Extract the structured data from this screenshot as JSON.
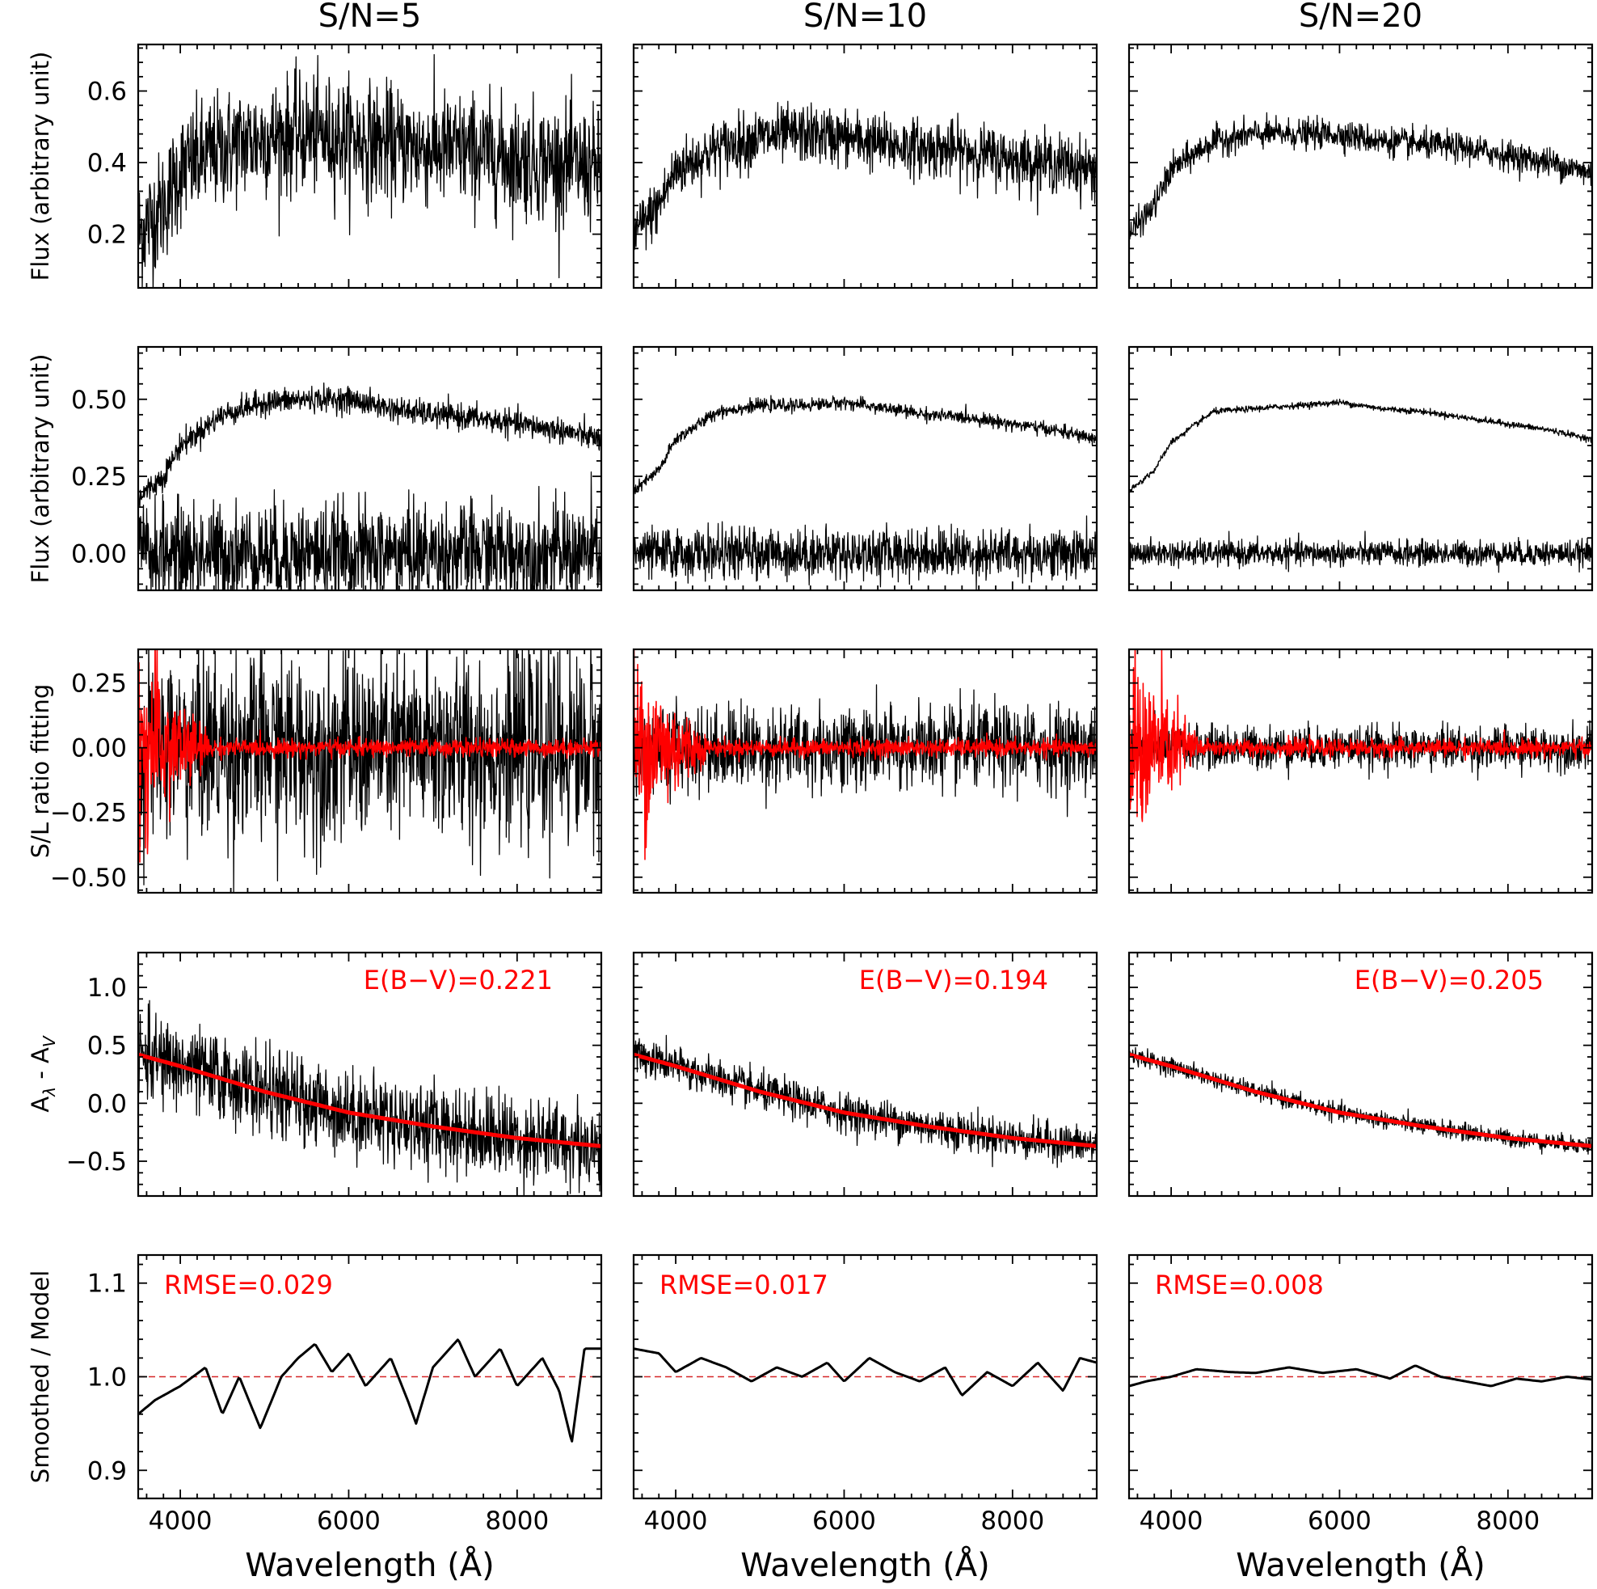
{
  "colors": {
    "data": "#000000",
    "model": "#ff0000",
    "reference": "#d62728"
  },
  "chart_data": {
    "type": "line",
    "layout": "5 rows x 3 columns grid of panels",
    "column_titles": [
      "S/N=5",
      "S/N=10",
      "S/N=20"
    ],
    "xlabel": "Wavelength (Å)",
    "xlim": [
      3500,
      9000
    ],
    "xticks": [
      4000,
      6000,
      8000
    ],
    "rows": [
      {
        "ylabel": "Flux (arbitrary unit)",
        "ylim": [
          0.05,
          0.73
        ],
        "yticks": [
          0.2,
          0.4,
          0.6
        ],
        "ytick_labels": [
          "0.2",
          "0.4",
          "0.6"
        ],
        "panels": [
          {
            "series": [
              {
                "x": [
                  3500,
                  3800,
                  4000,
                  4500,
                  5000,
                  5500,
                  6000,
                  6500,
                  7000,
                  7500,
                  8000,
                  8500,
                  9000
                ],
                "y": [
                  0.2,
                  0.28,
                  0.38,
                  0.44,
                  0.47,
                  0.48,
                  0.47,
                  0.45,
                  0.44,
                  0.43,
                  0.41,
                  0.4,
                  0.38
                ],
                "noise": 0.2
              }
            ]
          },
          {
            "series": [
              {
                "x": [
                  3500,
                  3800,
                  4000,
                  4500,
                  5000,
                  5500,
                  6000,
                  6500,
                  7000,
                  7500,
                  8000,
                  8500,
                  9000
                ],
                "y": [
                  0.2,
                  0.28,
                  0.38,
                  0.44,
                  0.47,
                  0.48,
                  0.47,
                  0.45,
                  0.44,
                  0.43,
                  0.41,
                  0.4,
                  0.38
                ],
                "noise": 0.1
              }
            ]
          },
          {
            "series": [
              {
                "x": [
                  3500,
                  3800,
                  4000,
                  4500,
                  5000,
                  5500,
                  6000,
                  6500,
                  7000,
                  7500,
                  8000,
                  8500,
                  9000
                ],
                "y": [
                  0.2,
                  0.28,
                  0.38,
                  0.46,
                  0.48,
                  0.48,
                  0.48,
                  0.46,
                  0.45,
                  0.44,
                  0.42,
                  0.4,
                  0.37
                ],
                "noise": 0.05
              }
            ]
          }
        ]
      },
      {
        "ylabel": "Flux (arbitrary unit)",
        "ylim": [
          -0.12,
          0.67
        ],
        "yticks": [
          0.0,
          0.25,
          0.5
        ],
        "ytick_labels": [
          "0.00",
          "0.25",
          "0.50"
        ],
        "panels": [
          {
            "series": [
              {
                "x": [
                  3500,
                  3800,
                  4000,
                  4500,
                  5000,
                  5500,
                  6000,
                  6500,
                  7000,
                  7500,
                  8000,
                  8500,
                  9000
                ],
                "y": [
                  0.18,
                  0.25,
                  0.35,
                  0.45,
                  0.49,
                  0.5,
                  0.5,
                  0.47,
                  0.45,
                  0.44,
                  0.42,
                  0.4,
                  0.37
                ],
                "noise": 0.05
              },
              {
                "x": [
                  3500,
                  9000
                ],
                "y": [
                  0.0,
                  0.0
                ],
                "noise": 0.2
              }
            ]
          },
          {
            "series": [
              {
                "x": [
                  3500,
                  3800,
                  4000,
                  4500,
                  5000,
                  5500,
                  6000,
                  6500,
                  7000,
                  7500,
                  8000,
                  8500,
                  9000
                ],
                "y": [
                  0.2,
                  0.27,
                  0.37,
                  0.46,
                  0.48,
                  0.48,
                  0.49,
                  0.47,
                  0.45,
                  0.44,
                  0.42,
                  0.4,
                  0.37
                ],
                "noise": 0.025
              },
              {
                "x": [
                  3500,
                  9000
                ],
                "y": [
                  0.0,
                  0.0
                ],
                "noise": 0.1
              }
            ]
          },
          {
            "series": [
              {
                "x": [
                  3500,
                  3800,
                  4000,
                  4500,
                  5000,
                  5500,
                  6000,
                  6500,
                  7000,
                  7500,
                  8000,
                  8500,
                  9000
                ],
                "y": [
                  0.2,
                  0.27,
                  0.36,
                  0.46,
                  0.47,
                  0.48,
                  0.49,
                  0.47,
                  0.46,
                  0.44,
                  0.42,
                  0.4,
                  0.37
                ],
                "noise": 0.012
              },
              {
                "x": [
                  3500,
                  9000
                ],
                "y": [
                  0.0,
                  0.0
                ],
                "noise": 0.05
              }
            ]
          }
        ]
      },
      {
        "ylabel": "S/L ratio fitting",
        "ylim": [
          -0.56,
          0.38
        ],
        "yticks": [
          -0.5,
          -0.25,
          0.0,
          0.25
        ],
        "ytick_labels": [
          "−0.50",
          "−0.25",
          "0.00",
          "0.25"
        ],
        "panels": [
          {
            "series": [
              {
                "x": [
                  3500,
                  9000
                ],
                "y": [
                  0.0,
                  0.0
                ],
                "noise": 0.45
              },
              {
                "x": [
                  3500,
                  9000
                ],
                "y": [
                  0.0,
                  0.0
                ],
                "noise": 0.04,
                "blue_scatter": 0.5,
                "color": "#ff0000"
              }
            ]
          },
          {
            "series": [
              {
                "x": [
                  3500,
                  9000
                ],
                "y": [
                  0.0,
                  0.0
                ],
                "noise": 0.2
              },
              {
                "x": [
                  3500,
                  9000
                ],
                "y": [
                  0.0,
                  0.0
                ],
                "noise": 0.04,
                "blue_scatter": 0.5,
                "color": "#ff0000"
              }
            ]
          },
          {
            "series": [
              {
                "x": [
                  3500,
                  9000
                ],
                "y": [
                  0.0,
                  0.0
                ],
                "noise": 0.1
              },
              {
                "x": [
                  3500,
                  9000
                ],
                "y": [
                  0.0,
                  0.0
                ],
                "noise": 0.04,
                "blue_scatter": 0.5,
                "color": "#ff0000"
              }
            ]
          }
        ]
      },
      {
        "ylabel": "Aλ - AV",
        "ylim": [
          -0.8,
          1.3
        ],
        "yticks": [
          -0.5,
          0.0,
          0.5,
          1.0
        ],
        "ytick_labels": [
          "−0.5",
          "0.0",
          "0.5",
          "1.0"
        ],
        "panels": [
          {
            "annotation": "E(B−V)=0.221",
            "series": [
              {
                "x": [
                  3500,
                  4000,
                  5000,
                  6000,
                  7000,
                  8000,
                  9000
                ],
                "y": [
                  0.42,
                  0.32,
                  0.1,
                  -0.08,
                  -0.2,
                  -0.3,
                  -0.37
                ],
                "noise": 0.45
              },
              {
                "x": [
                  3500,
                  4000,
                  5000,
                  6000,
                  7000,
                  8000,
                  9000
                ],
                "y": [
                  0.42,
                  0.32,
                  0.1,
                  -0.08,
                  -0.2,
                  -0.3,
                  -0.37
                ],
                "noise": 0,
                "color": "#ff0000",
                "width": 5
              }
            ]
          },
          {
            "annotation": "E(B−V)=0.194",
            "series": [
              {
                "x": [
                  3500,
                  4000,
                  5000,
                  6000,
                  7000,
                  8000,
                  9000
                ],
                "y": [
                  0.42,
                  0.32,
                  0.1,
                  -0.08,
                  -0.2,
                  -0.3,
                  -0.37
                ],
                "noise": 0.2
              },
              {
                "x": [
                  3500,
                  4000,
                  5000,
                  6000,
                  7000,
                  8000,
                  9000
                ],
                "y": [
                  0.42,
                  0.32,
                  0.1,
                  -0.08,
                  -0.2,
                  -0.3,
                  -0.37
                ],
                "noise": 0,
                "color": "#ff0000",
                "width": 5
              }
            ]
          },
          {
            "annotation": "E(B−V)=0.205",
            "series": [
              {
                "x": [
                  3500,
                  4000,
                  5000,
                  6000,
                  7000,
                  8000,
                  9000
                ],
                "y": [
                  0.42,
                  0.32,
                  0.1,
                  -0.08,
                  -0.2,
                  -0.3,
                  -0.37
                ],
                "noise": 0.09
              },
              {
                "x": [
                  3500,
                  4000,
                  5000,
                  6000,
                  7000,
                  8000,
                  9000
                ],
                "y": [
                  0.42,
                  0.32,
                  0.1,
                  -0.08,
                  -0.2,
                  -0.3,
                  -0.37
                ],
                "noise": 0,
                "color": "#ff0000",
                "width": 5
              }
            ]
          }
        ]
      },
      {
        "ylabel": "Smoothed / Model",
        "ylim": [
          0.87,
          1.13
        ],
        "yticks": [
          0.9,
          1.0,
          1.1
        ],
        "ytick_labels": [
          "0.9",
          "1.0",
          "1.1"
        ],
        "reference_line": 1.0,
        "panels": [
          {
            "annotation": "RMSE=0.029",
            "series": [
              {
                "x": [
                  3500,
                  3700,
                  4000,
                  4300,
                  4500,
                  4700,
                  4950,
                  5200,
                  5400,
                  5600,
                  5800,
                  6000,
                  6200,
                  6500,
                  6700,
                  6800,
                  7000,
                  7300,
                  7500,
                  7800,
                  8000,
                  8300,
                  8500,
                  8650,
                  8800,
                  9000
                ],
                "y": [
                  0.96,
                  0.975,
                  0.99,
                  1.01,
                  0.96,
                  1.0,
                  0.945,
                  1.0,
                  1.02,
                  1.035,
                  1.005,
                  1.025,
                  0.99,
                  1.02,
                  0.975,
                  0.95,
                  1.01,
                  1.04,
                  1.0,
                  1.03,
                  0.99,
                  1.02,
                  0.985,
                  0.93,
                  1.03,
                  1.03
                ]
              }
            ]
          },
          {
            "annotation": "RMSE=0.017",
            "series": [
              {
                "x": [
                  3500,
                  3800,
                  4000,
                  4300,
                  4600,
                  4900,
                  5200,
                  5500,
                  5800,
                  6000,
                  6300,
                  6600,
                  6900,
                  7200,
                  7400,
                  7700,
                  8000,
                  8300,
                  8600,
                  8800,
                  9000
                ],
                "y": [
                  1.03,
                  1.025,
                  1.005,
                  1.02,
                  1.01,
                  0.995,
                  1.01,
                  1.0,
                  1.015,
                  0.995,
                  1.02,
                  1.005,
                  0.995,
                  1.01,
                  0.98,
                  1.005,
                  0.99,
                  1.015,
                  0.985,
                  1.02,
                  1.015
                ]
              }
            ]
          },
          {
            "annotation": "RMSE=0.008",
            "series": [
              {
                "x": [
                  3500,
                  3700,
                  4000,
                  4300,
                  4700,
                  5000,
                  5400,
                  5800,
                  6200,
                  6600,
                  6900,
                  7200,
                  7500,
                  7800,
                  8100,
                  8400,
                  8700,
                  9000
                ],
                "y": [
                  0.99,
                  0.995,
                  1.0,
                  1.008,
                  1.005,
                  1.004,
                  1.01,
                  1.004,
                  1.008,
                  0.998,
                  1.012,
                  1.0,
                  0.995,
                  0.99,
                  0.998,
                  0.995,
                  1.0,
                  0.997
                ]
              }
            ]
          }
        ]
      }
    ]
  }
}
